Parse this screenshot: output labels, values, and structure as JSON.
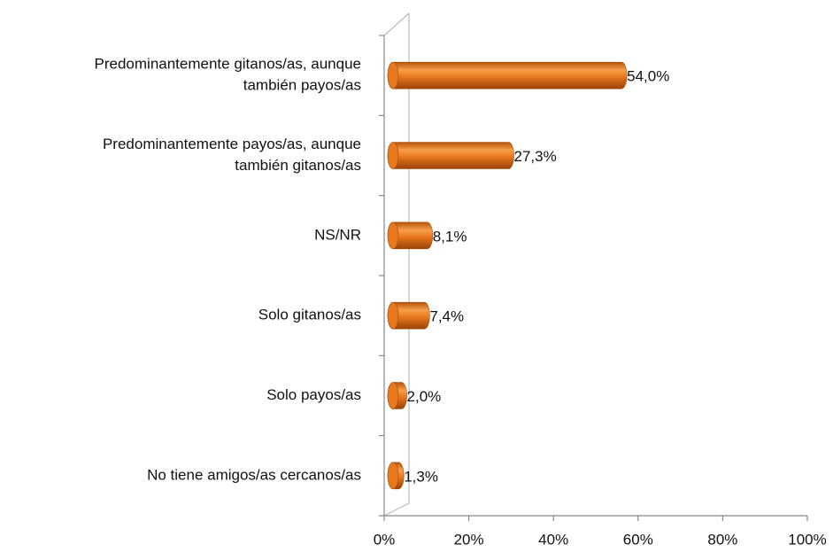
{
  "chart_data": {
    "type": "bar",
    "orientation": "horizontal",
    "categories": [
      [
        "Predominantemente gitanos/as, aunque",
        "también payos/as"
      ],
      [
        "Predominantemente payos/as, aunque",
        "también gitanos/as"
      ],
      [
        "NS/NR"
      ],
      [
        "Solo gitanos/as"
      ],
      [
        "Solo payos/as"
      ],
      [
        "No tiene amigos/as cercanos/as"
      ]
    ],
    "values": [
      54.0,
      27.3,
      8.1,
      7.4,
      2.0,
      1.3
    ],
    "value_labels": [
      "54,0%",
      "27,3%",
      "8,1%",
      "7,4%",
      "2,0%",
      "1,3%"
    ],
    "color": "#e8781e",
    "xlim": [
      0,
      100
    ],
    "xticks": [
      {
        "value": 0,
        "label": "0%"
      },
      {
        "value": 20,
        "label": "20%"
      },
      {
        "value": 40,
        "label": "40%"
      },
      {
        "value": 60,
        "label": "60%"
      },
      {
        "value": 80,
        "label": "80%"
      },
      {
        "value": 100,
        "label": "100%"
      }
    ],
    "grid": false
  }
}
